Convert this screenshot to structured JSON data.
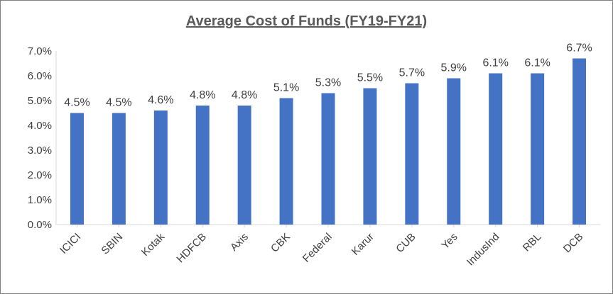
{
  "chart_data": {
    "type": "bar",
    "title": "Average Cost of Funds (FY19-FY21)",
    "categories": [
      "ICICI",
      "SBIN",
      "Kotak",
      "HDFCB",
      "Axis",
      "CBK",
      "Federal",
      "Karur",
      "CUB",
      "Yes",
      "IndusInd",
      "RBL",
      "DCB"
    ],
    "values": [
      4.5,
      4.5,
      4.6,
      4.8,
      4.8,
      5.1,
      5.3,
      5.5,
      5.7,
      5.9,
      6.1,
      6.1,
      6.7
    ],
    "data_labels": [
      "4.5%",
      "4.5%",
      "4.6%",
      "4.8%",
      "4.8%",
      "5.1%",
      "5.3%",
      "5.5%",
      "5.7%",
      "5.9%",
      "6.1%",
      "6.1%",
      "6.7%"
    ],
    "yticks": [
      "0.0%",
      "1.0%",
      "2.0%",
      "3.0%",
      "4.0%",
      "5.0%",
      "6.0%",
      "7.0%"
    ],
    "ylim": [
      0,
      7
    ],
    "ytick_step": 1,
    "grid": false,
    "legend": false,
    "bar_color": "#4472C4"
  }
}
